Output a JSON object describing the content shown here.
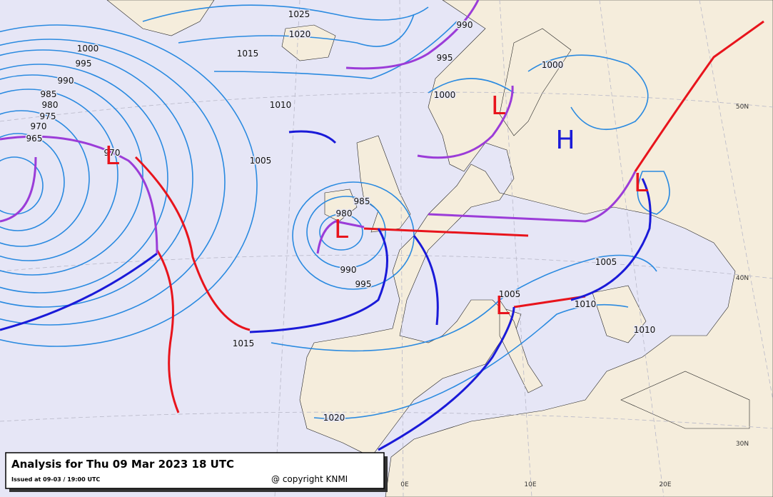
{
  "title": "Analysis for Thu 09 Mar 2023 18 UTC",
  "issued": "Issued at 09-03 / 19:00 UTC",
  "copyright": "@ copyright KNMI",
  "pressure_labels": [
    "1025",
    "1020",
    "1000",
    "995",
    "990",
    "985",
    "980",
    "975",
    "970",
    "965",
    "970",
    "1015",
    "1010",
    "1005",
    "985",
    "980",
    "990",
    "995",
    "1015",
    "1020",
    "990",
    "995",
    "1000",
    "1000",
    "1005",
    "1005",
    "1010",
    "1010"
  ],
  "centers": [
    "L",
    "L",
    "L",
    "L",
    "L",
    "H"
  ],
  "graticule_labels": [
    "0E",
    "10E",
    "20E",
    "30N",
    "40N",
    "50N"
  ]
}
